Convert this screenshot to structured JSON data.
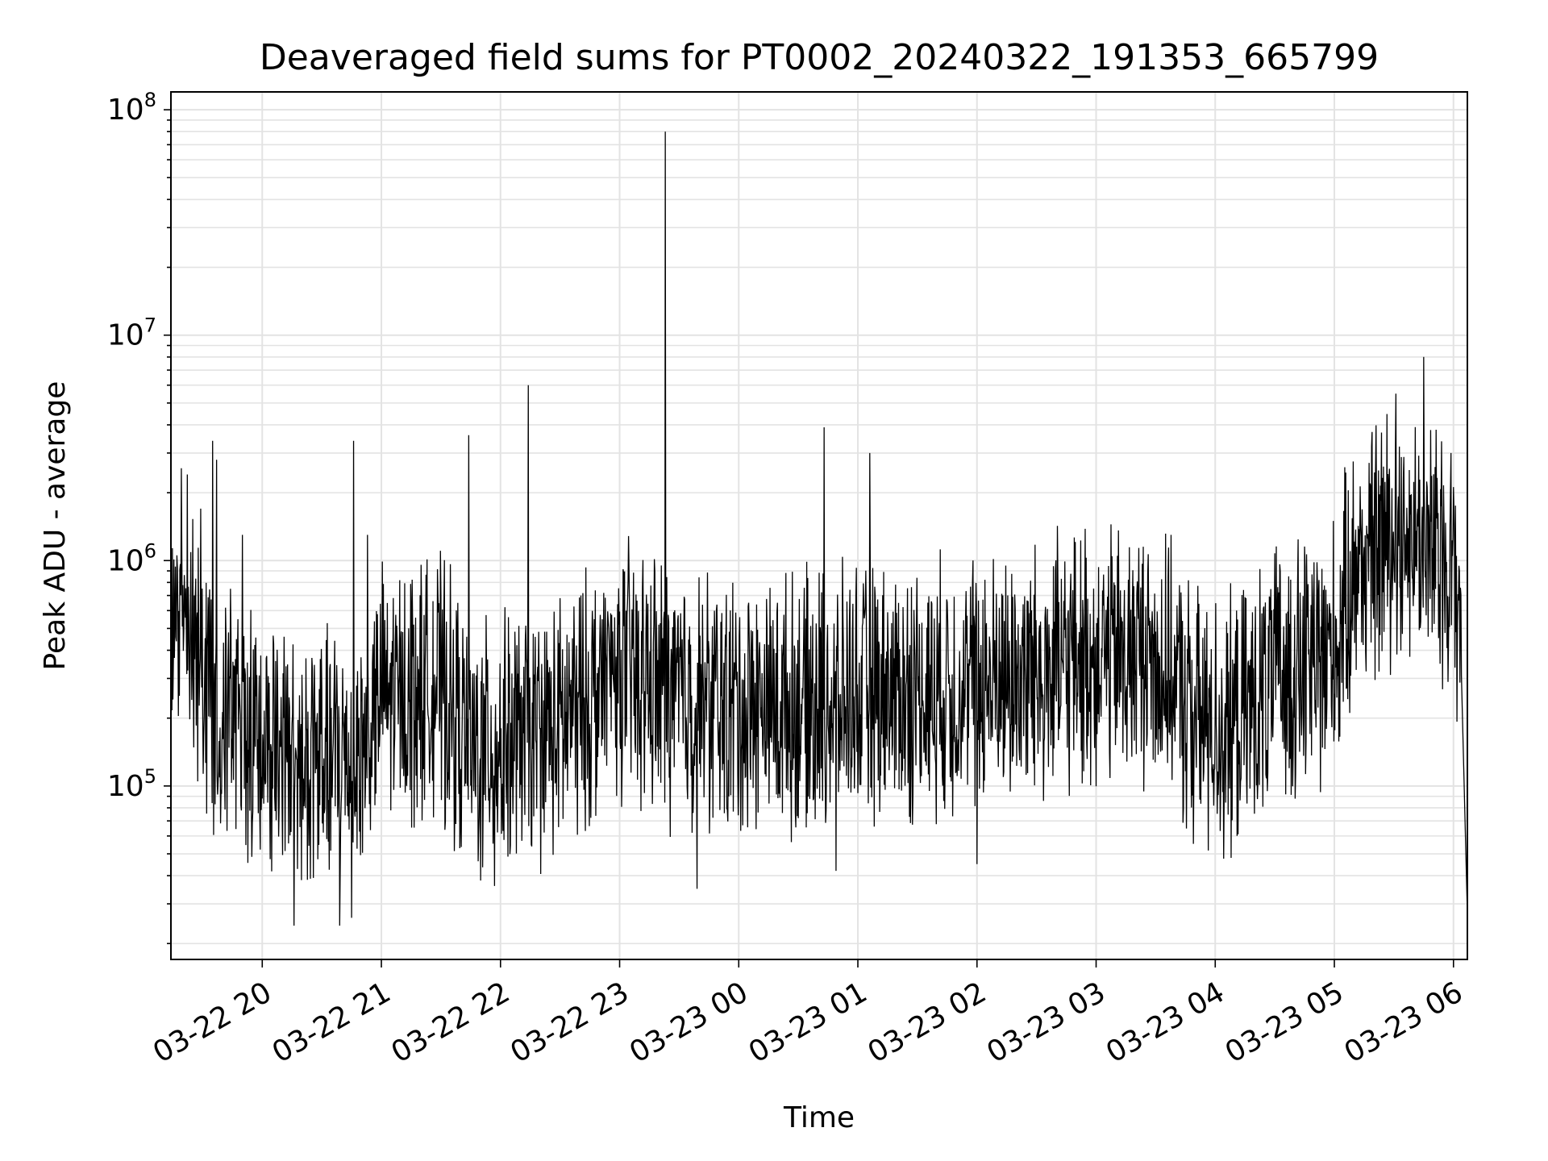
{
  "chart_data": {
    "type": "line",
    "title": "Deaveraged field sums for PT0002_20240322_191353_665799",
    "xlabel": "Time",
    "ylabel": "Peak ADU - average",
    "yscale": "log",
    "grid": true,
    "line_color": "#000000",
    "x_start": "2024-03-22 19:14",
    "x_end": "2024-03-23 06:07",
    "ylim": [
      17000,
      120000000
    ],
    "x_ticks": [
      "03-22 20",
      "03-22 21",
      "03-22 22",
      "03-22 23",
      "03-23 00",
      "03-23 01",
      "03-23 02",
      "03-23 03",
      "03-23 04",
      "03-23 05",
      "03-23 06"
    ],
    "y_ticks": [
      {
        "base": "10",
        "exp": "5",
        "value": 100000
      },
      {
        "base": "10",
        "exp": "6",
        "value": 1000000
      },
      {
        "base": "10",
        "exp": "7",
        "value": 10000000
      },
      {
        "base": "10",
        "exp": "8",
        "value": 100000000
      }
    ],
    "baseline": [
      {
        "x": "2024-03-22 19:14",
        "y": 480000
      },
      {
        "x": "2024-03-22 19:20",
        "y": 900000
      },
      {
        "x": "2024-03-22 19:30",
        "y": 300000
      },
      {
        "x": "2024-03-22 19:45",
        "y": 200000
      },
      {
        "x": "2024-03-22 20:00",
        "y": 170000
      },
      {
        "x": "2024-03-22 20:15",
        "y": 120000
      },
      {
        "x": "2024-03-22 20:30",
        "y": 130000
      },
      {
        "x": "2024-03-22 20:50",
        "y": 140000
      },
      {
        "x": "2024-03-22 21:00",
        "y": 250000
      },
      {
        "x": "2024-03-22 21:30",
        "y": 280000
      },
      {
        "x": "2024-03-22 21:45",
        "y": 140000
      },
      {
        "x": "2024-03-22 22:00",
        "y": 150000
      },
      {
        "x": "2024-03-22 22:30",
        "y": 180000
      },
      {
        "x": "2024-03-22 23:00",
        "y": 330000
      },
      {
        "x": "2024-03-22 23:30",
        "y": 250000
      },
      {
        "x": "2024-03-23 00:00",
        "y": 220000
      },
      {
        "x": "2024-03-23 00:30",
        "y": 230000
      },
      {
        "x": "2024-03-23 01:00",
        "y": 250000
      },
      {
        "x": "2024-03-23 01:30",
        "y": 260000
      },
      {
        "x": "2024-03-23 02:00",
        "y": 280000
      },
      {
        "x": "2024-03-23 02:30",
        "y": 320000
      },
      {
        "x": "2024-03-23 03:00",
        "y": 380000
      },
      {
        "x": "2024-03-23 03:30",
        "y": 380000
      },
      {
        "x": "2024-03-23 03:50",
        "y": 200000
      },
      {
        "x": "2024-03-23 04:10",
        "y": 180000
      },
      {
        "x": "2024-03-23 04:30",
        "y": 300000
      },
      {
        "x": "2024-03-23 05:00",
        "y": 400000
      },
      {
        "x": "2024-03-23 05:10",
        "y": 900000
      },
      {
        "x": "2024-03-23 05:30",
        "y": 1400000
      },
      {
        "x": "2024-03-23 05:50",
        "y": 1100000
      },
      {
        "x": "2024-03-23 06:00",
        "y": 1000000
      },
      {
        "x": "2024-03-23 06:04",
        "y": 500000
      },
      {
        "x": "2024-03-23 06:07",
        "y": 27000
      }
    ],
    "spikes": [
      {
        "x": "2024-03-22 19:35",
        "y": 3400000
      },
      {
        "x": "2024-03-22 19:37",
        "y": 2800000
      },
      {
        "x": "2024-03-22 19:29",
        "y": 1700000
      },
      {
        "x": "2024-03-22 19:50",
        "y": 1300000
      },
      {
        "x": "2024-03-22 20:46",
        "y": 3400000
      },
      {
        "x": "2024-03-22 20:53",
        "y": 1300000
      },
      {
        "x": "2024-03-22 21:44",
        "y": 3600000
      },
      {
        "x": "2024-03-22 22:14",
        "y": 6000000
      },
      {
        "x": "2024-03-22 23:23",
        "y": 80000000
      },
      {
        "x": "2024-03-23 00:43",
        "y": 3900000
      },
      {
        "x": "2024-03-23 01:06",
        "y": 3000000
      },
      {
        "x": "2024-03-23 05:31",
        "y": 5500000
      },
      {
        "x": "2024-03-23 05:45",
        "y": 8000000
      }
    ],
    "dips": [
      {
        "x": "2024-03-22 20:16",
        "y": 24000
      },
      {
        "x": "2024-03-22 20:39",
        "y": 24000
      },
      {
        "x": "2024-03-22 20:45",
        "y": 26000
      },
      {
        "x": "2024-03-22 21:57",
        "y": 36000
      },
      {
        "x": "2024-03-22 23:39",
        "y": 35000
      },
      {
        "x": "2024-03-23 00:49",
        "y": 42000
      },
      {
        "x": "2024-03-23 02:00",
        "y": 45000
      },
      {
        "x": "2024-03-23 04:08",
        "y": 48000
      }
    ]
  }
}
